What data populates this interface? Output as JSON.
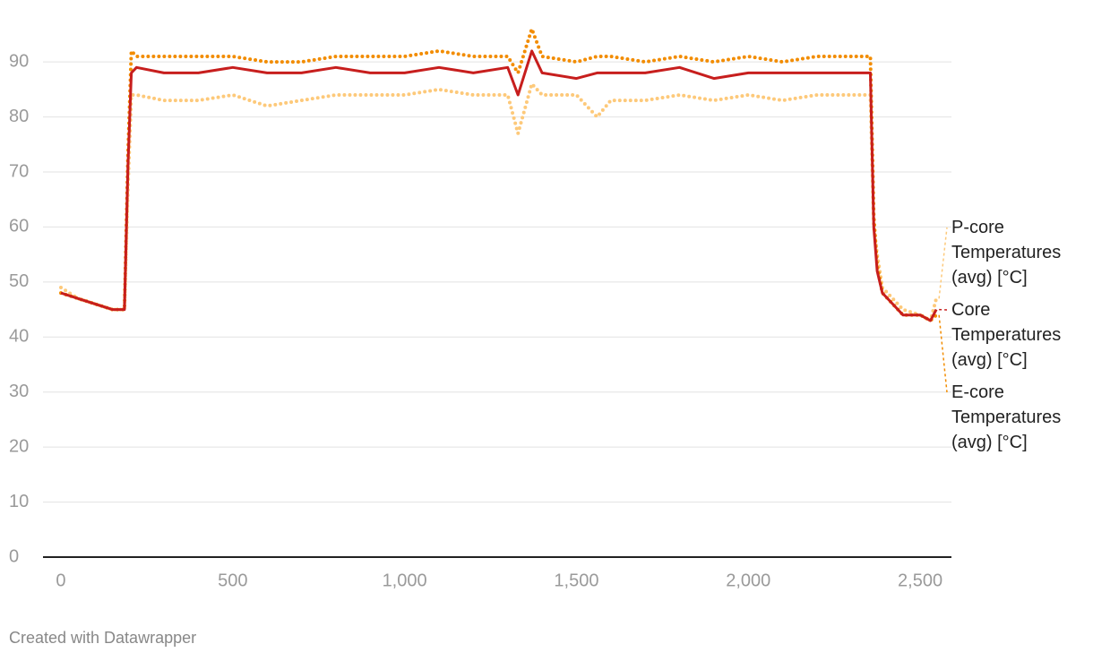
{
  "chart_data": {
    "type": "line",
    "x": [
      0,
      50,
      100,
      150,
      185,
      195,
      205,
      220,
      300,
      400,
      500,
      600,
      700,
      800,
      900,
      1000,
      1100,
      1200,
      1300,
      1330,
      1370,
      1400,
      1500,
      1560,
      1600,
      1700,
      1800,
      1900,
      2000,
      2100,
      2200,
      2300,
      2355,
      2365,
      2375,
      2390,
      2420,
      2450,
      2500,
      2530,
      2547
    ],
    "series": [
      {
        "name": "P-core Temperatures (avg) [°C]",
        "color": "#fdc97a",
        "style": "dotted",
        "values": [
          49,
          47,
          46,
          45,
          45,
          67,
          84,
          84,
          83,
          83,
          84,
          82,
          83,
          84,
          84,
          84,
          85,
          84,
          84,
          77,
          86,
          84,
          84,
          80,
          83,
          83,
          84,
          83,
          84,
          83,
          84,
          84,
          84,
          60,
          55,
          49,
          47,
          45,
          44,
          43,
          47
        ]
      },
      {
        "name": "E-core Temperatures (avg) [°C]",
        "color": "#f28c00",
        "style": "dotted",
        "values": [
          48,
          47,
          46,
          45,
          45,
          73,
          92,
          91,
          91,
          91,
          91,
          90,
          90,
          91,
          91,
          91,
          92,
          91,
          91,
          88,
          96,
          91,
          90,
          91,
          91,
          90,
          91,
          90,
          91,
          90,
          91,
          91,
          91,
          62,
          53,
          48,
          46,
          44,
          44,
          43,
          44
        ]
      },
      {
        "name": "Core Temperatures (avg) [°C]",
        "color": "#c71e1d",
        "style": "solid",
        "values": [
          48,
          47,
          46,
          45,
          45,
          71,
          88,
          89,
          88,
          88,
          89,
          88,
          88,
          89,
          88,
          88,
          89,
          88,
          89,
          84,
          92,
          88,
          87,
          88,
          88,
          88,
          89,
          87,
          88,
          88,
          88,
          88,
          88,
          60,
          52,
          48,
          46,
          44,
          44,
          43,
          45
        ]
      }
    ],
    "xlim": [
      -52,
      2591
    ],
    "ylim": [
      0,
      98
    ],
    "xticks": [
      0,
      500,
      {
        "value": 1000,
        "label": "1,000"
      },
      {
        "value": 1500,
        "label": "1,500"
      },
      {
        "value": 2000,
        "label": "2,000"
      },
      {
        "value": 2500,
        "label": "2,500"
      }
    ],
    "yticks": [
      0,
      10,
      20,
      30,
      40,
      50,
      60,
      70,
      80,
      90
    ],
    "grid": true,
    "credit": "Created with Datawrapper"
  }
}
